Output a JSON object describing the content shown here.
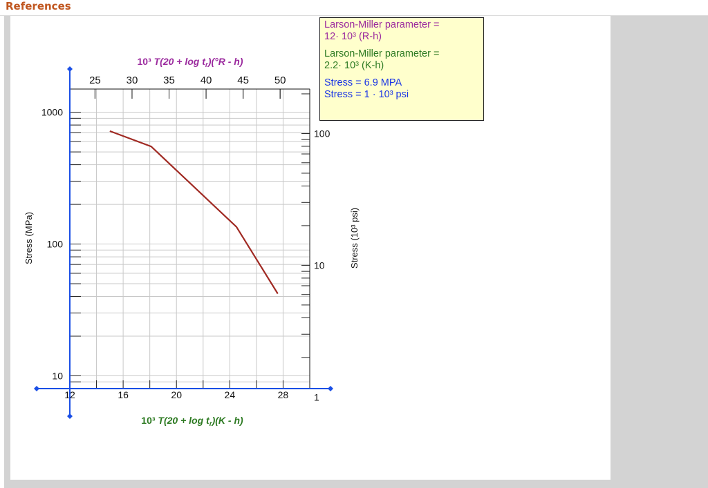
{
  "header": {
    "title": "References"
  },
  "info_box": {
    "lines": [
      {
        "text": "Larson-Miller parameter =",
        "color": "#9b2a9e"
      },
      {
        "text": "12· 10³ (R-h)",
        "color": "#9b2a9e"
      },
      {
        "text": "Larson-Miller parameter =",
        "color": "#2d7a22"
      },
      {
        "text": "2.2· 10³ (K-h)",
        "color": "#2d7a22"
      },
      {
        "text": "Stress = 6.9 MPA",
        "color": "#1a35e6"
      },
      {
        "text": "Stress = 1 · 10³ psi",
        "color": "#1a35e6"
      }
    ]
  },
  "chart_data": {
    "type": "line",
    "top_axis": {
      "label_prefix": "10³ ",
      "label_italic": "T(20 + log t",
      "label_sub": "r",
      "label_suffix": ")(°R - h)",
      "color": "#9b2a9e",
      "ticks": [
        25,
        30,
        35,
        40,
        45,
        50
      ]
    },
    "bottom_axis": {
      "label_prefix": "10³ ",
      "label_italic": "T(20 + log t",
      "label_sub": "r",
      "label_suffix": ")(K - h)",
      "color": "#2d7a22",
      "ticks": [
        12,
        16,
        20,
        24,
        28
      ],
      "range": [
        12,
        30
      ]
    },
    "left_axis": {
      "label": "Stress (MPa)",
      "scale": "log",
      "ticks": [
        10,
        100,
        1000
      ],
      "range": [
        8,
        1500
      ]
    },
    "right_axis": {
      "label": "Stress (10³ psi)",
      "scale": "log",
      "ticks": [
        1,
        10,
        100
      ]
    },
    "series": [
      {
        "color": "#a02a23",
        "x": [
          15.0,
          18.1,
          24.5,
          27.6
        ],
        "y": [
          720,
          550,
          135,
          42
        ]
      }
    ],
    "colors": {
      "axis_blue": "#1a4fe6",
      "curve": "#a02a23"
    }
  }
}
